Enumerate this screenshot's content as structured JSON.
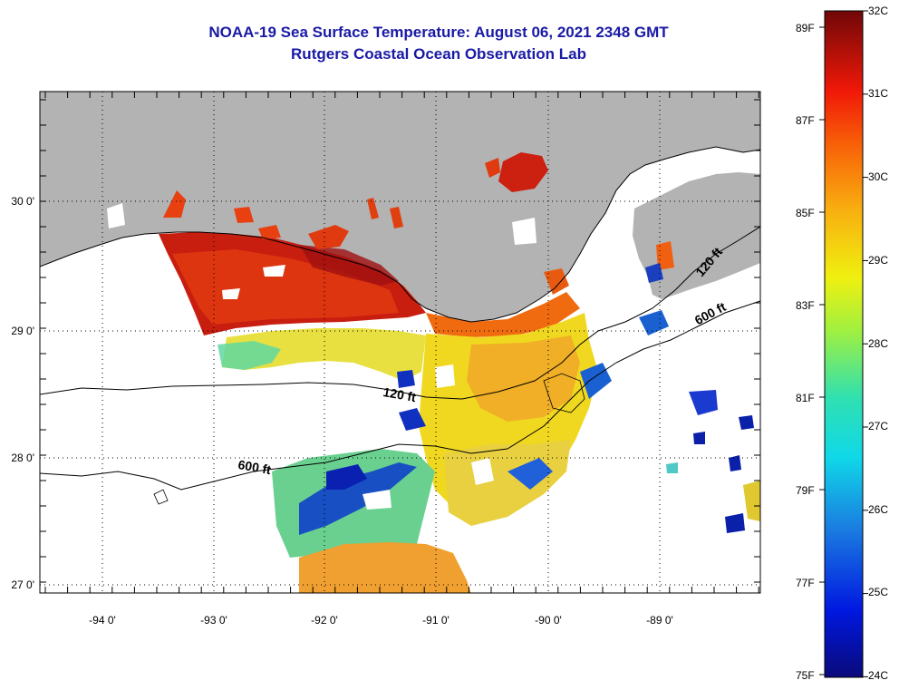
{
  "header": {
    "title": "NOAA-19 Sea Surface Temperature:  August 06, 2021 2348 GMT",
    "subtitle": "Rutgers Coastal Ocean Observation Lab"
  },
  "map": {
    "lat_labels": [
      "30 0'",
      "29 0'",
      "28 0'",
      "27 0'"
    ],
    "lon_labels": [
      "-94 0'",
      "-93 0'",
      "-92 0'",
      "-91 0'",
      "-90 0'",
      "-89 0'"
    ],
    "contours": [
      {
        "label": "120 ft"
      },
      {
        "label": "600 ft"
      },
      {
        "label": "600 ft"
      },
      {
        "label": "120 ft"
      }
    ],
    "colors": {
      "land": "#b3b3b3",
      "hot": "#cc1a10",
      "warm": "#f0a020",
      "mid": "#f0e020",
      "cool": "#40d0b0",
      "cold": "#1020c0"
    }
  },
  "colorbar": {
    "fahrenheit": [
      "89F",
      "87F",
      "85F",
      "83F",
      "81F",
      "79F",
      "77F",
      "75F"
    ],
    "celsius": [
      "32C",
      "31C",
      "30C",
      "29C",
      "28C",
      "27C",
      "26C",
      "25C",
      "24C"
    ]
  }
}
